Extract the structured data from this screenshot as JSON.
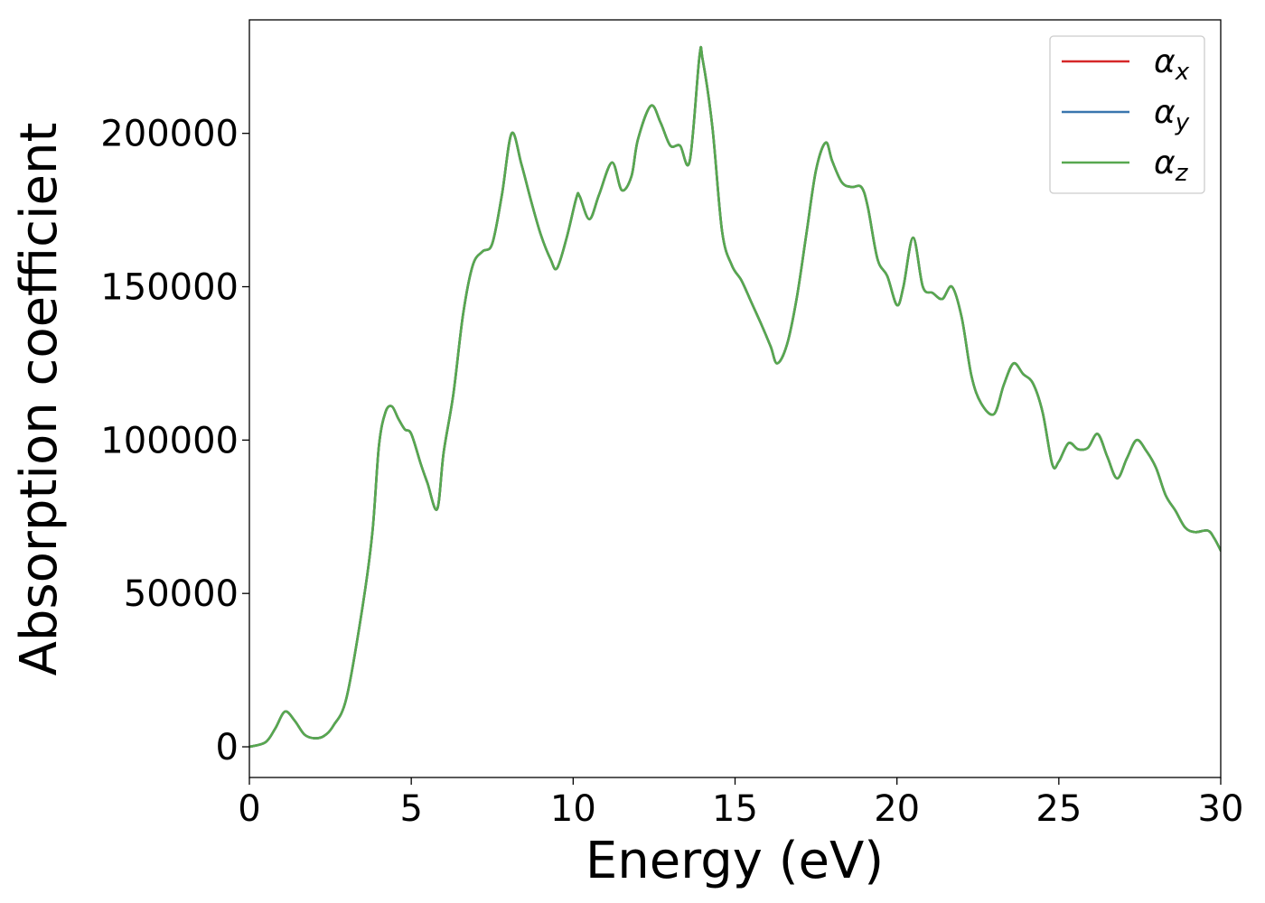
{
  "chart_data": {
    "type": "line",
    "xlabel": "Energy (eV)",
    "ylabel": "Absorption coefficient",
    "xlim": [
      0,
      30
    ],
    "ylim": [
      -10000,
      237000
    ],
    "xticks": [
      0,
      5,
      10,
      15,
      20,
      25,
      30
    ],
    "yticks": [
      0,
      50000,
      100000,
      150000,
      200000
    ],
    "xtick_labels": [
      "0",
      "5",
      "10",
      "15",
      "20",
      "25",
      "30"
    ],
    "ytick_labels": [
      "0",
      "50000",
      "100000",
      "150000",
      "200000"
    ],
    "grid": false,
    "legend": {
      "placement": "top-right",
      "entries": [
        {
          "symbol": "α",
          "subscript": "x",
          "color": "#d62728"
        },
        {
          "symbol": "α",
          "subscript": "y",
          "color": "#3a76ae"
        },
        {
          "symbol": "α",
          "subscript": "z",
          "color": "#57a84f"
        }
      ]
    },
    "x": [
      0,
      0.5,
      0.8,
      1.1,
      1.4,
      1.7,
      2.0,
      2.3,
      2.6,
      3.0,
      3.5,
      3.8,
      4.0,
      4.2,
      4.4,
      4.6,
      4.8,
      5.0,
      5.3,
      5.5,
      5.8,
      6.0,
      6.3,
      6.6,
      6.9,
      7.2,
      7.5,
      7.8,
      8.1,
      8.4,
      8.7,
      9.0,
      9.3,
      9.5,
      9.8,
      10.1,
      10.2,
      10.5,
      10.8,
      11.2,
      11.5,
      11.8,
      12.0,
      12.4,
      12.7,
      13.0,
      13.3,
      13.6,
      13.9,
      14.0,
      14.3,
      14.6,
      14.9,
      15.2,
      15.5,
      15.8,
      16.1,
      16.3,
      16.6,
      16.9,
      17.2,
      17.5,
      17.8,
      18.0,
      18.3,
      18.6,
      18.9,
      19.1,
      19.4,
      19.7,
      20.0,
      20.2,
      20.5,
      20.8,
      21.1,
      21.4,
      21.7,
      22.0,
      22.3,
      22.6,
      23.0,
      23.3,
      23.6,
      23.9,
      24.2,
      24.5,
      24.8,
      25.0,
      25.3,
      25.6,
      25.9,
      26.2,
      26.5,
      26.8,
      27.1,
      27.4,
      27.7,
      28.0,
      28.3,
      28.6,
      28.9,
      29.2,
      29.6,
      29.8,
      30.0
    ],
    "series": [
      {
        "values": [
          0,
          1500,
          6000,
          11500,
          8500,
          4000,
          2800,
          3500,
          7000,
          16000,
          46000,
          70000,
          98000,
          109000,
          111000,
          107000,
          103500,
          102000,
          92000,
          86000,
          77500,
          96000,
          115000,
          141000,
          157000,
          161500,
          164000,
          180000,
          200000,
          190000,
          178000,
          167000,
          159000,
          156000,
          166000,
          179000,
          179500,
          172000,
          180000,
          190500,
          181500,
          186000,
          198000,
          209000,
          203500,
          196000,
          196000,
          191000,
          225000,
          224000,
          202000,
          168000,
          157000,
          152000,
          145000,
          138000,
          130500,
          125000,
          131000,
          146000,
          167000,
          188000,
          197000,
          191000,
          184000,
          182500,
          182500,
          176000,
          159000,
          153500,
          144000,
          150000,
          166000,
          150000,
          148000,
          146000,
          150000,
          140000,
          121000,
          112000,
          108500,
          118000,
          125000,
          121500,
          118500,
          109000,
          92000,
          93000,
          99000,
          97000,
          97500,
          102000,
          94500,
          87500,
          94000,
          100000,
          96500,
          91000,
          82000,
          77000,
          71500,
          70000,
          70500,
          68000,
          64000
        ]
      },
      {
        "values": [
          0,
          1500,
          6000,
          11500,
          8500,
          4000,
          2800,
          3500,
          7000,
          16000,
          46000,
          70000,
          98000,
          109000,
          111000,
          107000,
          103500,
          102000,
          92000,
          86000,
          77500,
          96000,
          115000,
          141000,
          157000,
          161500,
          164000,
          180000,
          200000,
          190000,
          178000,
          167000,
          159000,
          156000,
          166000,
          179000,
          179500,
          172000,
          180000,
          190500,
          181500,
          186000,
          198000,
          209000,
          203500,
          196000,
          196000,
          191000,
          225000,
          224000,
          202000,
          168000,
          157000,
          152000,
          145000,
          138000,
          130500,
          125000,
          131000,
          146000,
          167000,
          188000,
          197000,
          191000,
          184000,
          182500,
          182500,
          176000,
          159000,
          153500,
          144000,
          150000,
          166000,
          150000,
          148000,
          146000,
          150000,
          140000,
          121000,
          112000,
          108500,
          118000,
          125000,
          121500,
          118500,
          109000,
          92000,
          93000,
          99000,
          97000,
          97500,
          102000,
          94500,
          87500,
          94000,
          100000,
          96500,
          91000,
          82000,
          77000,
          71500,
          70000,
          70500,
          68000,
          64000
        ]
      },
      {
        "values": [
          0,
          1500,
          6000,
          11500,
          8500,
          4000,
          2800,
          3500,
          7000,
          16000,
          46000,
          70000,
          98000,
          109000,
          111000,
          107000,
          103500,
          102000,
          92000,
          86000,
          77500,
          96000,
          115000,
          141000,
          157000,
          161500,
          164000,
          180000,
          200000,
          190000,
          178000,
          167000,
          159000,
          156000,
          166000,
          179000,
          179500,
          172000,
          180000,
          190500,
          181500,
          186000,
          198000,
          209000,
          203500,
          196000,
          196000,
          191000,
          225000,
          224000,
          202000,
          168000,
          157000,
          152000,
          145000,
          138000,
          130500,
          125000,
          131000,
          146000,
          167000,
          188000,
          197000,
          191000,
          184000,
          182500,
          182500,
          176000,
          159000,
          153500,
          144000,
          150000,
          166000,
          150000,
          148000,
          146000,
          150000,
          140000,
          121000,
          112000,
          108500,
          118000,
          125000,
          121500,
          118500,
          109000,
          92000,
          93000,
          99000,
          97000,
          97500,
          102000,
          94500,
          87500,
          94000,
          100000,
          96500,
          91000,
          82000,
          77000,
          71500,
          70000,
          70500,
          68000,
          64000
        ]
      }
    ]
  }
}
